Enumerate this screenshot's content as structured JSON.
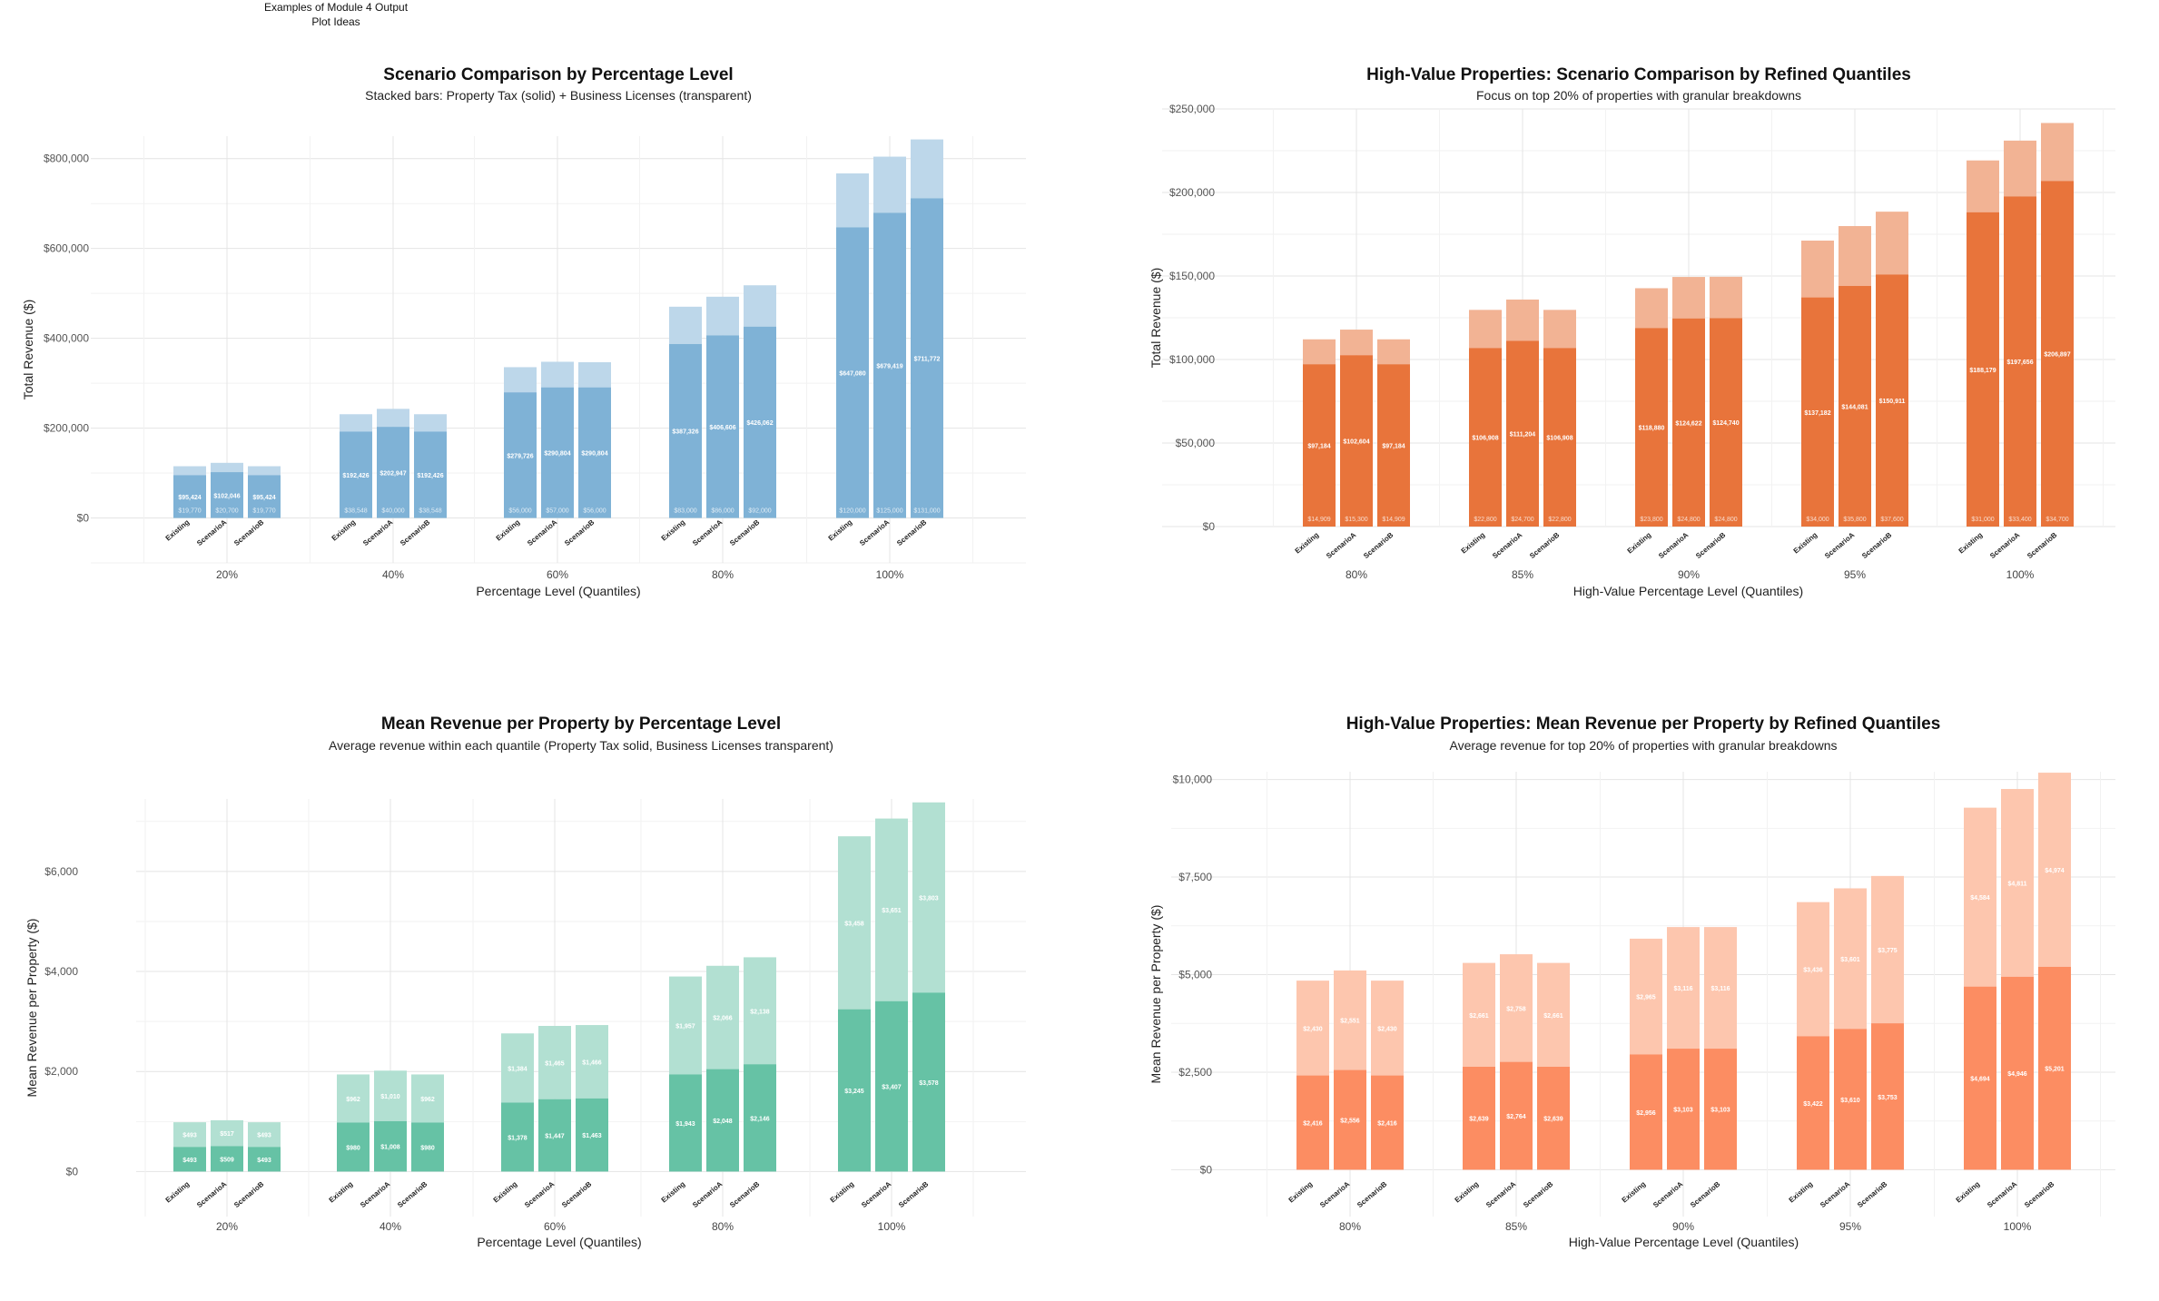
{
  "header": {
    "line1": "Examples of Module 4 Output",
    "line2": "Plot Ideas"
  },
  "chart_data": [
    {
      "type": "bar",
      "stacked": true,
      "title": "Scenario Comparison by Percentage Level",
      "subtitle": "Stacked bars: Property Tax (solid) + Business Licenses (transparent)",
      "xlabel": "Percentage Level (Quantiles)",
      "ylabel": "Total Revenue ($)",
      "ylim": [
        -100000,
        850000
      ],
      "yticks": [
        0,
        200000,
        400000,
        600000,
        800000
      ],
      "ytick_labels": [
        "$0",
        "$200,000",
        "$400,000",
        "$600,000",
        "$800,000"
      ],
      "groups": [
        "20%",
        "40%",
        "60%",
        "80%",
        "100%"
      ],
      "scenarios": [
        "Existing",
        "ScenarioA",
        "ScenarioB"
      ],
      "solid_color": "#7fb2d6",
      "light_color": "#bdd7ea",
      "series": [
        {
          "name": "Property Tax",
          "values": [
            [
              95424,
              102046,
              95424
            ],
            [
              192426,
              202947,
              192426
            ],
            [
              279726,
              290804,
              290804
            ],
            [
              387326,
              406606,
              426062
            ],
            [
              647080,
              679419,
              711772
            ]
          ]
        },
        {
          "name": "Business Licenses",
          "values": [
            [
              19770,
              20700,
              19770
            ],
            [
              38548,
              40000,
              38548
            ],
            [
              56000,
              57000,
              56000
            ],
            [
              83000,
              86000,
              92000
            ],
            [
              120000,
              125000,
              131000
            ]
          ]
        }
      ],
      "solid_labels": [
        [
          "$95,424",
          "$102,046",
          "$95,424"
        ],
        [
          "$192,426",
          "$202,947",
          "$192,426"
        ],
        [
          "$279,726",
          "$290,804",
          "$290,804"
        ],
        [
          "$387,326",
          "$406,606",
          "$426,062"
        ],
        [
          "$647,080",
          "$679,419",
          "$711,772"
        ]
      ],
      "light_labels": [
        [
          "$19,770",
          "$20,700",
          "$19,770"
        ],
        [
          "$38,548",
          "$40,000",
          "$38,548"
        ],
        [
          "$56,000",
          "$57,000",
          "$56,000"
        ],
        [
          "$83,000",
          "$86,000",
          "$92,000"
        ],
        [
          "$120,000",
          "$125,000",
          "$131,000"
        ]
      ]
    },
    {
      "type": "bar",
      "stacked": true,
      "title": "High-Value Properties: Scenario Comparison by Refined Quantiles",
      "subtitle": "Focus on top 20% of properties with granular breakdowns",
      "xlabel": "High-Value Percentage Level (Quantiles)",
      "ylabel": "Total Revenue ($)",
      "ylim": [
        0,
        250000
      ],
      "yticks": [
        0,
        50000,
        100000,
        150000,
        200000,
        250000
      ],
      "ytick_labels": [
        "$0",
        "$50,000",
        "$100,000",
        "$150,000",
        "$200,000",
        "$250,000"
      ],
      "groups": [
        "80%",
        "85%",
        "90%",
        "95%",
        "100%"
      ],
      "scenarios": [
        "Existing",
        "ScenarioA",
        "ScenarioB"
      ],
      "solid_color": "#e8743b",
      "light_color": "#f2b394",
      "series": [
        {
          "name": "Property Tax",
          "values": [
            [
              97184,
              102604,
              97184
            ],
            [
              106908,
              111204,
              106908
            ],
            [
              118880,
              124622,
              124740
            ],
            [
              137182,
              144081,
              150911
            ],
            [
              188179,
              197656,
              206897
            ]
          ]
        },
        {
          "name": "Business Licenses",
          "values": [
            [
              14909,
              15300,
              14909
            ],
            [
              22800,
              24700,
              22800
            ],
            [
              23800,
              24800,
              24800
            ],
            [
              34000,
              35800,
              37600
            ],
            [
              31000,
              33400,
              34700
            ]
          ]
        }
      ],
      "solid_labels": [
        [
          "$97,184",
          "$102,604",
          "$97,184"
        ],
        [
          "$106,908",
          "$111,204",
          "$106,908"
        ],
        [
          "$118,880",
          "$124,622",
          "$124,740"
        ],
        [
          "$137,182",
          "$144,081",
          "$150,911"
        ],
        [
          "$188,179",
          "$197,656",
          "$206,897"
        ]
      ],
      "light_labels": [
        [
          "$14,909",
          "$15,300",
          "$14,909"
        ],
        [
          "$22,800",
          "$24,700",
          "$22,800"
        ],
        [
          "$23,800",
          "$24,800",
          "$24,800"
        ],
        [
          "$34,000",
          "$35,800",
          "$37,600"
        ],
        [
          "$31,000",
          "$33,400",
          "$34,700"
        ]
      ]
    },
    {
      "type": "bar",
      "stacked": true,
      "title": "Mean Revenue per Property by Percentage Level",
      "subtitle": "Average revenue within each quantile (Property Tax solid, Business Licenses transparent)",
      "xlabel": "Percentage Level (Quantiles)",
      "ylabel": "Mean Revenue per Property ($)",
      "ylim": [
        -900,
        7450
      ],
      "yticks": [
        0,
        2000,
        4000,
        6000
      ],
      "ytick_labels": [
        "$0",
        "$2,000",
        "$4,000",
        "$6,000"
      ],
      "groups": [
        "20%",
        "40%",
        "60%",
        "80%",
        "100%"
      ],
      "scenarios": [
        "Existing",
        "ScenarioA",
        "ScenarioB"
      ],
      "solid_color": "#66c2a5",
      "light_color": "#b2e0d2",
      "series": [
        {
          "name": "Property Tax",
          "values": [
            [
              493,
              509,
              493
            ],
            [
              980,
              1008,
              980
            ],
            [
              1378,
              1447,
              1463
            ],
            [
              1943,
              2048,
              2146
            ],
            [
              3245,
              3407,
              3578
            ]
          ]
        },
        {
          "name": "Business Licenses",
          "values": [
            [
              493,
              517,
              493
            ],
            [
              962,
              1010,
              962
            ],
            [
              1384,
              1465,
              1466
            ],
            [
              1957,
              2066,
              2138
            ],
            [
              3458,
              3651,
              3803
            ]
          ]
        }
      ],
      "solid_labels": [
        [
          "$493",
          "$509",
          "$493"
        ],
        [
          "$980",
          "$1,008",
          "$980"
        ],
        [
          "$1,378",
          "$1,447",
          "$1,463"
        ],
        [
          "$1,943",
          "$2,048",
          "$2,146"
        ],
        [
          "$3,245",
          "$3,407",
          "$3,578"
        ]
      ],
      "light_labels": [
        [
          "$493",
          "$517",
          "$493"
        ],
        [
          "$962",
          "$1,010",
          "$962"
        ],
        [
          "$1,384",
          "$1,465",
          "$1,466"
        ],
        [
          "$1,957",
          "$2,066",
          "$2,138"
        ],
        [
          "$3,458",
          "$3,651",
          "$3,803"
        ]
      ]
    },
    {
      "type": "bar",
      "stacked": true,
      "title": "High-Value Properties: Mean Revenue per Property by Refined Quantiles",
      "subtitle": "Average revenue for top 20% of properties with granular breakdowns",
      "xlabel": "High-Value Percentage Level (Quantiles)",
      "ylabel": "Mean Revenue per Property ($)",
      "ylim": [
        -1200,
        10200
      ],
      "yticks": [
        0,
        2500,
        5000,
        7500,
        10000
      ],
      "ytick_labels": [
        "$0",
        "$2,500",
        "$5,000",
        "$7,500",
        "$10,000"
      ],
      "groups": [
        "80%",
        "85%",
        "90%",
        "95%",
        "100%"
      ],
      "scenarios": [
        "Existing",
        "ScenarioA",
        "ScenarioB"
      ],
      "solid_color": "#fc8d62",
      "light_color": "#fdc6ae",
      "series": [
        {
          "name": "Property Tax",
          "values": [
            [
              2416,
              2556,
              2416
            ],
            [
              2639,
              2764,
              2639
            ],
            [
              2956,
              3103,
              3103
            ],
            [
              3422,
              3610,
              3753
            ],
            [
              4694,
              4946,
              5201
            ]
          ]
        },
        {
          "name": "Business Licenses",
          "values": [
            [
              2430,
              2551,
              2430
            ],
            [
              2661,
              2758,
              2661
            ],
            [
              2965,
              3116,
              3116
            ],
            [
              3436,
              3601,
              3775
            ],
            [
              4584,
              4811,
              4974
            ]
          ]
        }
      ],
      "solid_labels": [
        [
          "$2,416",
          "$2,556",
          "$2,416"
        ],
        [
          "$2,639",
          "$2,764",
          "$2,639"
        ],
        [
          "$2,956",
          "$3,103",
          "$3,103"
        ],
        [
          "$3,422",
          "$3,610",
          "$3,753"
        ],
        [
          "$4,694",
          "$4,946",
          "$5,201"
        ]
      ],
      "light_labels": [
        [
          "$2,430",
          "$2,551",
          "$2,430"
        ],
        [
          "$2,661",
          "$2,758",
          "$2,661"
        ],
        [
          "$2,965",
          "$3,116",
          "$3,116"
        ],
        [
          "$3,436",
          "$3,601",
          "$3,775"
        ],
        [
          "$4,584",
          "$4,811",
          "$4,974"
        ]
      ]
    }
  ]
}
